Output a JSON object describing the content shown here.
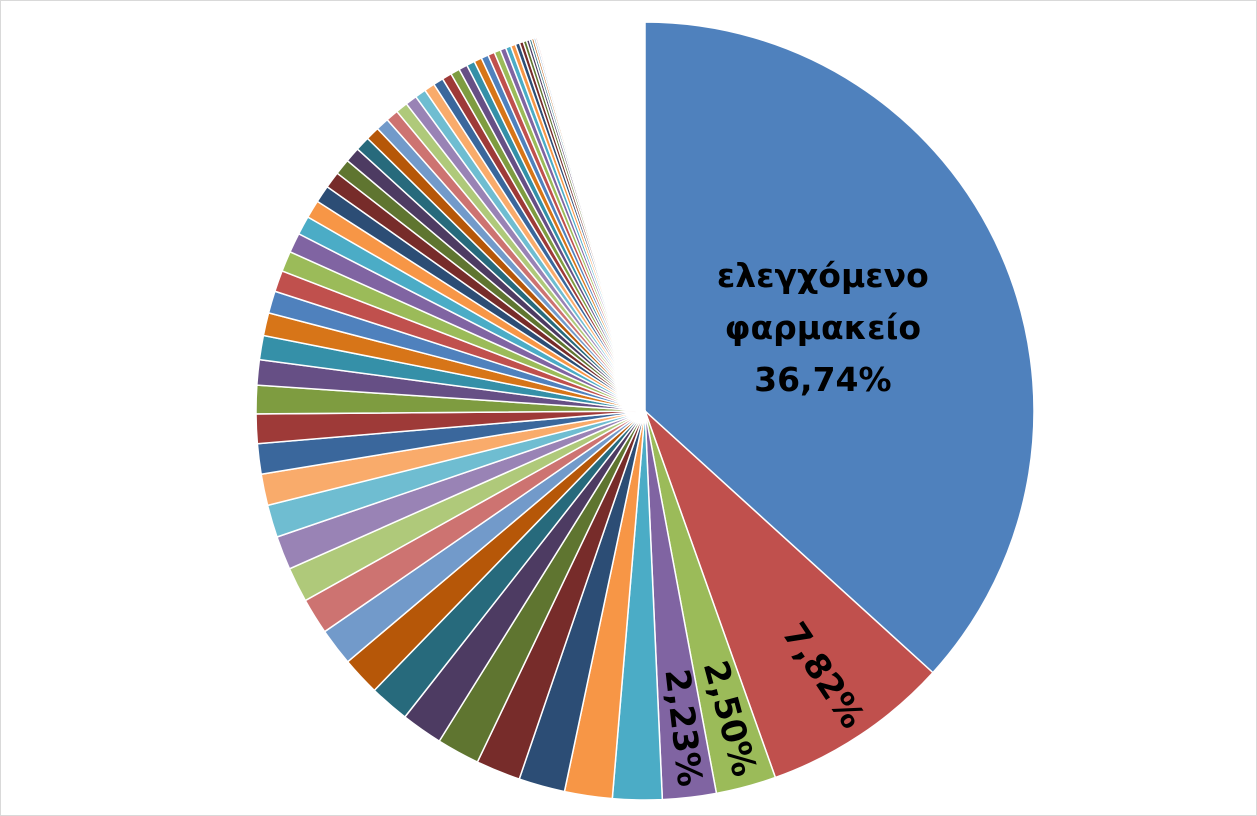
{
  "chart_data": {
    "type": "pie",
    "categories": [
      "ελεγχόμενο φαρμακείο",
      null,
      null,
      null,
      null,
      null,
      null,
      null,
      null,
      null,
      null,
      null,
      null,
      null,
      null,
      null,
      null,
      null,
      null,
      null,
      null,
      null,
      null,
      null,
      null,
      null,
      null,
      null,
      null,
      null,
      null,
      null,
      null,
      null,
      null,
      null,
      null,
      null,
      null,
      null,
      null,
      null,
      null,
      null,
      null,
      null,
      null,
      null,
      null,
      null,
      null,
      null,
      null,
      null,
      null,
      null,
      null,
      null,
      null,
      null,
      null,
      null,
      null,
      null,
      null,
      null
    ],
    "values": [
      36.74,
      7.82,
      2.5,
      2.23,
      2.05,
      1.98,
      1.92,
      1.85,
      1.78,
      1.72,
      1.66,
      1.6,
      1.55,
      1.5,
      1.45,
      1.4,
      1.35,
      1.3,
      1.26,
      1.22,
      1.18,
      1.05,
      1.0,
      0.95,
      0.92,
      0.88,
      0.85,
      0.82,
      0.78,
      0.75,
      0.72,
      0.69,
      0.66,
      0.63,
      0.6,
      0.57,
      0.54,
      0.52,
      0.5,
      0.48,
      0.46,
      0.44,
      0.42,
      0.4,
      0.38,
      0.36,
      0.34,
      0.32,
      0.3,
      0.28,
      0.26,
      0.24,
      0.22,
      0.2,
      0.18,
      0.16,
      0.14,
      0.12,
      0.1,
      0.09,
      0.08,
      0.07,
      0.06,
      0.05,
      0.04,
      0.03
    ],
    "value_labels": [
      "36,74%",
      "7,82%",
      "2,50%",
      "2,23%",
      null,
      null,
      null,
      null,
      null,
      null,
      null,
      null,
      null,
      null,
      null,
      null,
      null,
      null,
      null,
      null,
      null,
      null,
      null,
      null,
      null,
      null,
      null,
      null,
      null,
      null,
      null,
      null,
      null,
      null,
      null,
      null,
      null,
      null,
      null,
      null,
      null,
      null,
      null,
      null,
      null,
      null,
      null,
      null,
      null,
      null,
      null,
      null,
      null,
      null,
      null,
      null,
      null,
      null,
      null,
      null,
      null,
      null,
      null,
      null,
      null,
      null
    ],
    "colors": [
      "#4F81BD",
      "#C0504D",
      "#9BBB59",
      "#8064A2",
      "#4BACC6",
      "#F79646",
      "#2C4D75",
      "#772C2A",
      "#5F7530",
      "#4D3B62",
      "#276A7C",
      "#B65708",
      "#729ACA",
      "#CD7371",
      "#AFC97A",
      "#9983B5",
      "#6FBDD1",
      "#F9AB6B",
      "#3A679C",
      "#9E3A38",
      "#7E9C40",
      "#664F85",
      "#3590A8",
      "#D77518"
    ]
  }
}
